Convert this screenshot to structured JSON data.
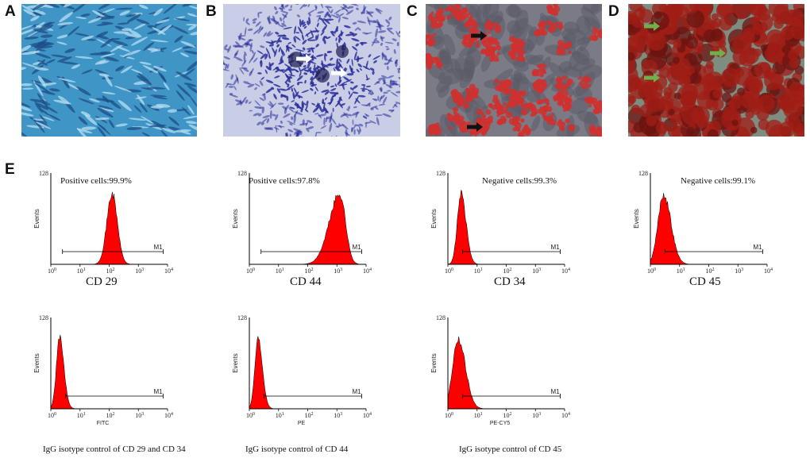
{
  "panels": {
    "a": {
      "label": "A"
    },
    "b": {
      "label": "B"
    },
    "c": {
      "label": "C"
    },
    "d": {
      "label": "D"
    },
    "e": {
      "label": "E"
    }
  },
  "histograms": [
    {
      "id": "cd29",
      "marker": "CD 29",
      "stat": "Positive cells:99.9%",
      "ymax": "128",
      "ylabel": "Events",
      "m1": "M1",
      "channel": "",
      "peak_log": 2.1,
      "width": 0.18,
      "skew": 0.0,
      "color": "#ff0000"
    },
    {
      "id": "cd44",
      "marker": "CD 44",
      "stat": "Positive cells:97.8%",
      "ymax": "128",
      "ylabel": "Events",
      "m1": "M1",
      "channel": "",
      "peak_log": 3.1,
      "width": 0.28,
      "skew": -0.6,
      "color": "#ff0000"
    },
    {
      "id": "cd34",
      "marker": "CD 34",
      "stat": "Negative cells:99.3%",
      "ymax": "128",
      "ylabel": "Events",
      "m1": "M1",
      "channel": "",
      "peak_log": 0.45,
      "width": 0.15,
      "skew": 0.3,
      "color": "#ff0000"
    },
    {
      "id": "cd45",
      "marker": "CD 45",
      "stat": "Negative cells:99.1%",
      "ymax": "128",
      "ylabel": "Events",
      "m1": "M1",
      "channel": "",
      "peak_log": 0.45,
      "width": 0.22,
      "skew": 0.3,
      "color": "#ff0000"
    },
    {
      "id": "iso-fitc",
      "marker": "",
      "stat": "",
      "ymax": "128",
      "ylabel": "Events",
      "m1": "M1",
      "channel": "FITC",
      "peak_log": 0.3,
      "width": 0.13,
      "skew": 0.3,
      "color": "#ff0000"
    },
    {
      "id": "iso-pe",
      "marker": "",
      "stat": "",
      "ymax": "128",
      "ylabel": "Events",
      "m1": "M1",
      "channel": "PE",
      "peak_log": 0.3,
      "width": 0.13,
      "skew": 0.3,
      "color": "#ff0000"
    },
    {
      "id": "iso-pecy5",
      "marker": "",
      "stat": "",
      "ymax": "128",
      "ylabel": "Events",
      "m1": "M1",
      "channel": "PE-CY5",
      "peak_log": 0.35,
      "width": 0.22,
      "skew": 0.3,
      "color": "#ff0000"
    }
  ],
  "axis": {
    "tick_base": "10",
    "tick_exponents": [
      "0",
      "1",
      "2",
      "3",
      "4"
    ]
  },
  "isotype_labels": {
    "fitc": "IgG isotype control of CD 29 and CD 34",
    "pe": "IgG isotype control of CD 44",
    "pecy5": "IgG isotype control of CD 45"
  },
  "colors": {
    "panel_a_bg": "#3e95c6",
    "panel_b_bg": "#c9cde6",
    "panel_b_stain": "#2a2f9a",
    "panel_c_bg": "#7b7b86",
    "panel_c_stain": "#d0302e",
    "panel_d_bg": "#7d8d80",
    "panel_d_stain": "#a01d16",
    "arrow_white": "#ffffff",
    "arrow_black": "#111111",
    "arrow_green": "#6fb04a"
  }
}
